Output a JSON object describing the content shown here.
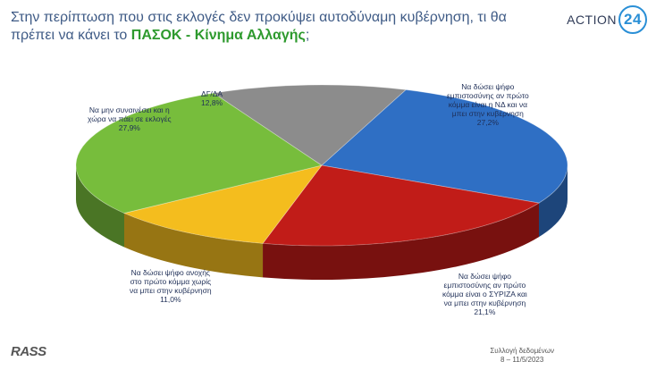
{
  "header": {
    "title_part1": "Στην περίπτωση που στις εκλογές δεν προκύψει αυτοδύναμη κυβέρνηση, τι θα πρέπει να κάνει το ",
    "title_highlight": "ΠΑΣΟΚ - Κίνημα Αλλαγής",
    "title_end": ";",
    "brand_text": "ACTION",
    "brand_number": "24"
  },
  "chart_data": {
    "type": "pie",
    "style": "3d",
    "slices": [
      {
        "label_lines": [
          "Να δώσει ψήφο",
          "εμπιστοσύνης αν πρώτο",
          "κόμμα είναι η ΝΔ και να",
          "μπει στην κυβέρνηση"
        ],
        "value_label": "27,2%",
        "value": 27.2,
        "color": "#2f6fc4"
      },
      {
        "label_lines": [
          "Να δώσει ψήφο",
          "εμπιστοσύνης αν πρώτο",
          "κόμμα είναι ο ΣΥΡΙΖΑ και",
          "να μπει στην κυβέρνηση"
        ],
        "value_label": "21,1%",
        "value": 21.1,
        "color": "#c11c18"
      },
      {
        "label_lines": [
          "Να δώσει ψήφο ανοχής",
          "στο πρώτο κόμμα χωρίς",
          "να μπει στην κυβέρνηση"
        ],
        "value_label": "11,0%",
        "value": 11.0,
        "color": "#f4bd1e"
      },
      {
        "label_lines": [
          "Να μην συναινέσει και η",
          "χώρα να πάει σε εκλογές"
        ],
        "value_label": "27,9%",
        "value": 27.9,
        "color": "#77bd3c"
      },
      {
        "label_lines": [
          "ΔΓ/ΔΑ"
        ],
        "value_label": "12,8%",
        "value": 12.8,
        "color": "#8c8c8c"
      }
    ]
  },
  "footer": {
    "logo": "RASS",
    "note_line1": "Συλλογή δεδομένων",
    "note_line2": "8 – 11/5/2023"
  }
}
